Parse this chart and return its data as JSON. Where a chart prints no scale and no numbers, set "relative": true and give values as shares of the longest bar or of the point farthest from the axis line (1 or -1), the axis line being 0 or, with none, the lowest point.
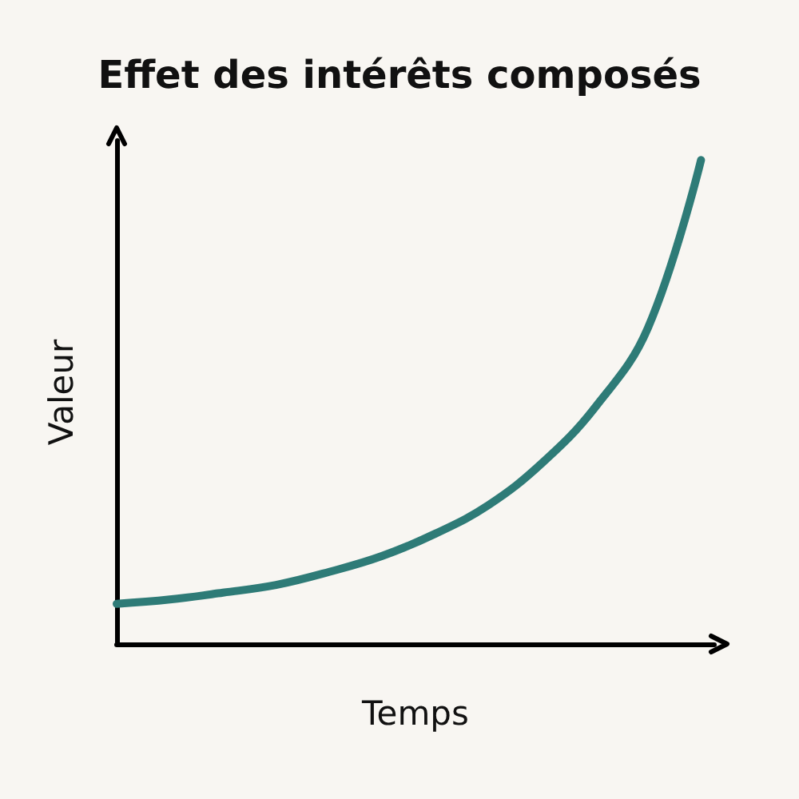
{
  "chart_data": {
    "type": "line",
    "title": "Effet des intérêts composés",
    "xlabel": "Temps",
    "ylabel": "Valeur",
    "relative": true,
    "categories": [
      null,
      null,
      null,
      null,
      null,
      null,
      null,
      null,
      null,
      null,
      null,
      null
    ],
    "series": [
      {
        "color": "#2e7b77",
        "values": [
          0.083,
          0.092,
          0.106,
          0.122,
          0.149,
          0.182,
          0.228,
          0.287,
          0.373,
          0.488,
          0.653,
          1
        ]
      }
    ],
    "grid": false,
    "marker": "none",
    "line_style": "solid"
  }
}
